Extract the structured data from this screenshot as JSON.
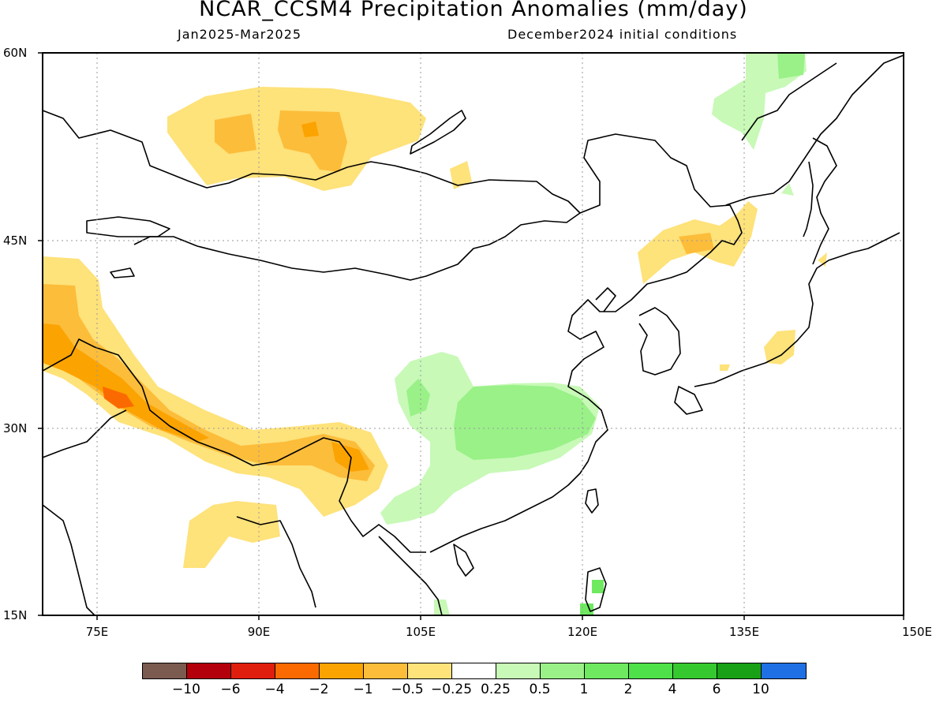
{
  "title": "NCAR_CCSM4 Precipitation Anomalies (mm/day)",
  "subtitle_left": "Jan2025-Mar2025",
  "subtitle_right": "December2024 initial conditions",
  "map": {
    "lat_labels": [
      "60N",
      "45N",
      "30N",
      "15N"
    ],
    "lon_labels": [
      "75E",
      "90E",
      "105E",
      "120E",
      "135E",
      "150E"
    ],
    "lat_range": [
      15,
      60
    ],
    "lon_range": [
      70,
      150
    ],
    "grid": "dotted"
  },
  "colorbar": {
    "colors": [
      "#7b5a4f",
      "#b4000a",
      "#e01e0e",
      "#fb6a00",
      "#fba300",
      "#fcbd3a",
      "#fee27a",
      "#ffffff",
      "#c8f9b7",
      "#99f188",
      "#6ee960",
      "#4ee149",
      "#36c82f",
      "#18a016",
      "#1f70e4"
    ],
    "labels": [
      "−10",
      "−6",
      "−4",
      "−2",
      "−1",
      "−0.5",
      "−0.25",
      "0.25",
      "0.5",
      "1",
      "2",
      "4",
      "6",
      "10"
    ]
  },
  "shading": {
    "dry_light": "#fee27a",
    "dry_mid": "#fcbd3a",
    "dry_strong": "#fba300",
    "dry_peak": "#fb6a00",
    "wet_light": "#c8f9b7",
    "wet_mid": "#99f188",
    "wet_strong": "#6ee960"
  }
}
